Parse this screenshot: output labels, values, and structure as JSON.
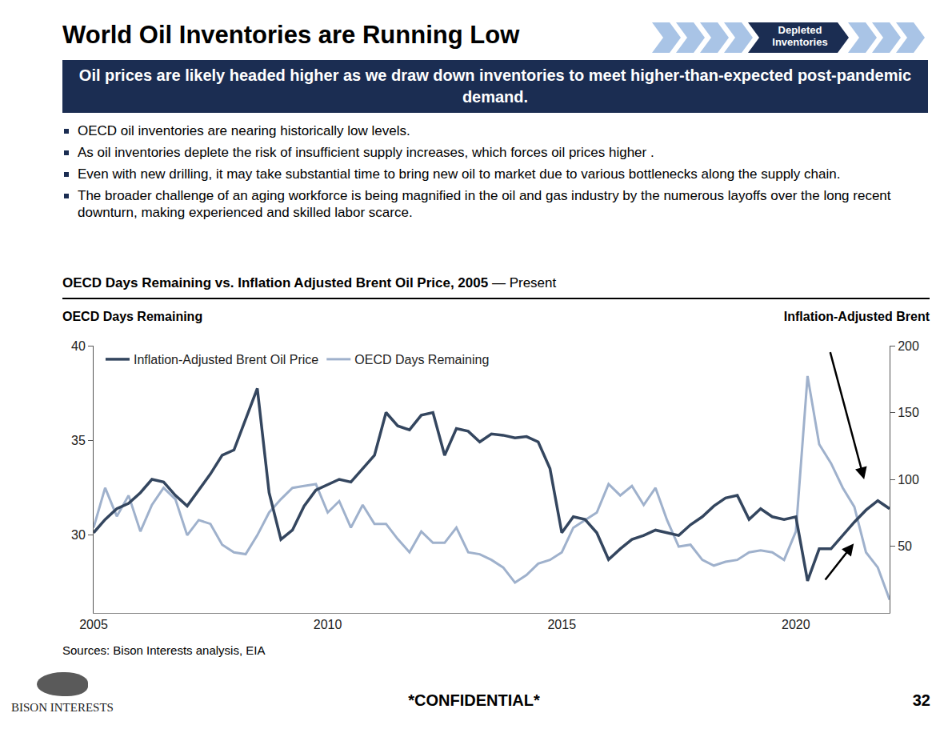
{
  "header": {
    "title": "World Oil Inventories are Running Low",
    "tag": [
      "Depleted",
      "Inventories"
    ],
    "banner": "Oil prices are likely headed higher as we draw down inventories to meet higher-than-expected post-pandemic demand."
  },
  "bullets": [
    "OECD oil inventories are nearing historically low levels.",
    "As oil inventories deplete the risk of insufficient supply increases, which forces oil prices higher .",
    "Even with new drilling, it may take substantial time to bring new oil to market due to various bottlenecks along the supply chain.",
    "The broader challenge of an aging workforce is being magnified in the oil and gas industry by the numerous layoffs over the long recent downturn, making experienced and skilled labor scarce."
  ],
  "chart_data": {
    "type": "line",
    "title": "OECD Days Remaining vs. Inflation Adjusted Brent Oil Price, 2005",
    "subtitle": "— Present",
    "y_label": "OECD Days Remaining",
    "y2_label": "Inflation-Adjusted Brent",
    "x": [
      "2005-01",
      "2005-04",
      "2005-07",
      "2005-10",
      "2006-01",
      "2006-04",
      "2006-07",
      "2006-10",
      "2007-01",
      "2007-04",
      "2007-07",
      "2007-10",
      "2008-01",
      "2008-04",
      "2008-07",
      "2008-10",
      "2009-01",
      "2009-04",
      "2009-07",
      "2009-10",
      "2010-01",
      "2010-04",
      "2010-07",
      "2010-10",
      "2011-01",
      "2011-04",
      "2011-07",
      "2011-10",
      "2012-01",
      "2012-04",
      "2012-07",
      "2012-10",
      "2013-01",
      "2013-04",
      "2013-07",
      "2013-10",
      "2014-01",
      "2014-04",
      "2014-07",
      "2014-10",
      "2015-01",
      "2015-04",
      "2015-07",
      "2015-10",
      "2016-01",
      "2016-04",
      "2016-07",
      "2016-10",
      "2017-01",
      "2017-04",
      "2017-07",
      "2017-10",
      "2018-01",
      "2018-04",
      "2018-07",
      "2018-10",
      "2019-01",
      "2019-04",
      "2019-07",
      "2019-10",
      "2020-01",
      "2020-04",
      "2020-07",
      "2020-10",
      "2021-01",
      "2021-04",
      "2021-07",
      "2021-10",
      "2022-01"
    ],
    "series": [
      {
        "name": "Inflation-Adjusted Brent Oil Price",
        "color": "#34465f",
        "axis": "y2",
        "values": [
          60,
          70,
          78,
          82,
          90,
          100,
          98,
          88,
          80,
          92,
          104,
          118,
          122,
          145,
          168,
          90,
          55,
          62,
          80,
          92,
          96,
          100,
          98,
          108,
          118,
          150,
          140,
          137,
          148,
          150,
          118,
          138,
          136,
          128,
          134,
          133,
          131,
          132,
          128,
          108,
          60,
          72,
          70,
          60,
          40,
          48,
          55,
          58,
          62,
          60,
          58,
          66,
          72,
          80,
          86,
          88,
          70,
          78,
          72,
          70,
          72,
          24,
          48,
          48,
          58,
          68,
          77,
          84,
          78
        ]
      },
      {
        "name": "OECD Days Remaining",
        "color": "#9fb1cc",
        "values": [
          30.4,
          32.5,
          31.0,
          32.1,
          30.2,
          31.6,
          32.5,
          31.9,
          30.0,
          30.8,
          30.6,
          29.5,
          29.1,
          29.0,
          30.0,
          31.2,
          31.9,
          32.5,
          32.6,
          32.7,
          31.2,
          31.8,
          30.4,
          31.6,
          30.6,
          30.6,
          29.8,
          29.1,
          30.2,
          29.6,
          29.6,
          30.4,
          29.1,
          29.0,
          28.7,
          28.3,
          27.5,
          27.9,
          28.5,
          28.7,
          29.1,
          30.4,
          30.8,
          31.2,
          32.7,
          32.1,
          32.6,
          31.6,
          32.5,
          30.8,
          29.4,
          29.5,
          28.7,
          28.4,
          28.6,
          28.7,
          29.1,
          29.2,
          29.1,
          28.7,
          30.2,
          38.4,
          34.8,
          33.8,
          32.5,
          31.5,
          29.1,
          28.3,
          26.6
        ]
      }
    ],
    "xlim": [
      "2005-01",
      "2022-01"
    ],
    "xticks": [
      {
        "value": "2005-01-01",
        "label": "2005"
      },
      {
        "value": "2010-01-01",
        "label": "2010"
      },
      {
        "value": "2015-01-01",
        "label": "2015"
      },
      {
        "value": "2020-01-01",
        "label": "2020"
      }
    ],
    "ylim": [
      25.9,
      40
    ],
    "yticks": [
      30,
      35,
      40
    ],
    "y2lim": [
      0,
      200
    ],
    "y2ticks": [
      50,
      100,
      150,
      200
    ],
    "grid": false,
    "legend": "upper left"
  },
  "sources": "Sources: Bison Interests analysis, EIA",
  "footer": {
    "logo": "BISON INTERESTS",
    "confidential": "*CONFIDENTIAL*",
    "page": 32
  }
}
